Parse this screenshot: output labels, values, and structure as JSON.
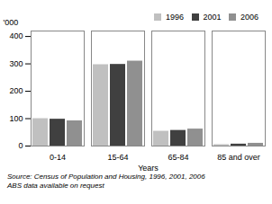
{
  "chart_data": {
    "type": "bar",
    "categories": [
      "0-14",
      "15-64",
      "65-84",
      "85 and over"
    ],
    "series": [
      {
        "name": "1996",
        "color": "#c0c0c0",
        "values": [
          100,
          297,
          54,
          5
        ]
      },
      {
        "name": "2001",
        "color": "#404040",
        "values": [
          98,
          298,
          57,
          7
        ]
      },
      {
        "name": "2006",
        "color": "#909090",
        "values": [
          92,
          310,
          62,
          10
        ]
      }
    ],
    "xlabel": "Years",
    "ylabel": "'000",
    "ylim": [
      0,
      420
    ],
    "yticks": [
      0,
      100,
      200,
      300,
      400
    ],
    "grid": false,
    "legend": "upper right",
    "annotations": [
      "Source: Census of Population and Housing, 1996, 2001, 2006",
      "ABS data available on request"
    ]
  }
}
